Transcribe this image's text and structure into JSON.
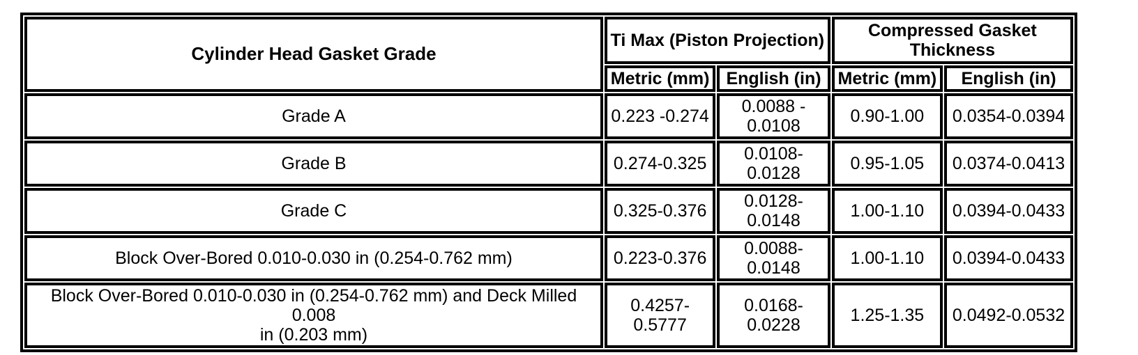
{
  "table": {
    "grade_header": "Cylinder Head Gasket Grade",
    "group_headers": {
      "ti_max": "Ti Max (Piston Projection)",
      "compressed": "Compressed Gasket\nThickness"
    },
    "sub_headers": {
      "ti_metric": "Metric (mm)",
      "ti_english": "English (in)",
      "cg_metric": "Metric (mm)",
      "cg_english": "English (in)"
    },
    "rows": [
      {
        "grade": "Grade A",
        "ti_metric": "0.223 -0.274",
        "ti_english": "0.0088 -\n0.0108",
        "cg_metric": "0.90-1.00",
        "cg_english": "0.0354-0.0394"
      },
      {
        "grade": "Grade B",
        "ti_metric": "0.274-0.325",
        "ti_english": "0.0108-\n0.0128",
        "cg_metric": "0.95-1.05",
        "cg_english": "0.0374-0.0413"
      },
      {
        "grade": "Grade C",
        "ti_metric": "0.325-0.376",
        "ti_english": "0.0128-\n0.0148",
        "cg_metric": "1.00-1.10",
        "cg_english": "0.0394-0.0433"
      },
      {
        "grade": "Block Over-Bored 0.010-0.030 in (0.254-0.762 mm)",
        "ti_metric": "0.223-0.376",
        "ti_english": "0.0088-\n0.0148",
        "cg_metric": "1.00-1.10",
        "cg_english": "0.0394-0.0433"
      },
      {
        "grade": "Block Over-Bored 0.010-0.030 in (0.254-0.762 mm) and Deck Milled 0.008\nin (0.203 mm)",
        "ti_metric": "0.4257-\n0.5777",
        "ti_english": "0.0168-\n0.0228",
        "cg_metric": "1.25-1.35",
        "cg_english": "0.0492-0.0532"
      }
    ],
    "colors": {
      "border": "#000000",
      "background": "#ffffff",
      "text": "#000000"
    }
  }
}
